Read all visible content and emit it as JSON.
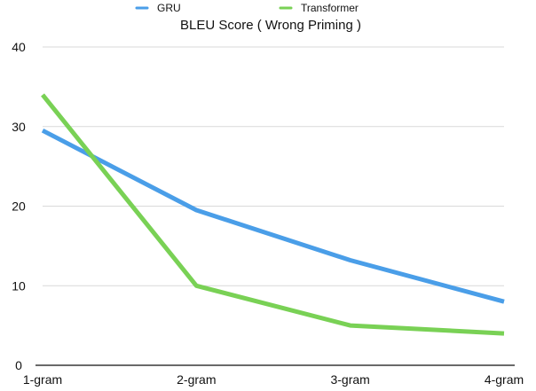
{
  "chart_data": {
    "type": "line",
    "title": "BLEU Score ( Wrong Priming )",
    "xlabel": "",
    "ylabel": "",
    "categories": [
      "1-gram",
      "2-gram",
      "3-gram",
      "4-gram"
    ],
    "y_ticks": [
      0,
      10,
      20,
      30,
      40
    ],
    "ylim": [
      0,
      40
    ],
    "grid": true,
    "legend_position": "top",
    "series": [
      {
        "name": "GRU",
        "color": "#4a9ee8",
        "values": [
          29.5,
          19.5,
          13.2,
          8.0
        ]
      },
      {
        "name": "Transformer",
        "color": "#79d155",
        "values": [
          34.0,
          10.0,
          5.0,
          4.0
        ]
      }
    ]
  }
}
